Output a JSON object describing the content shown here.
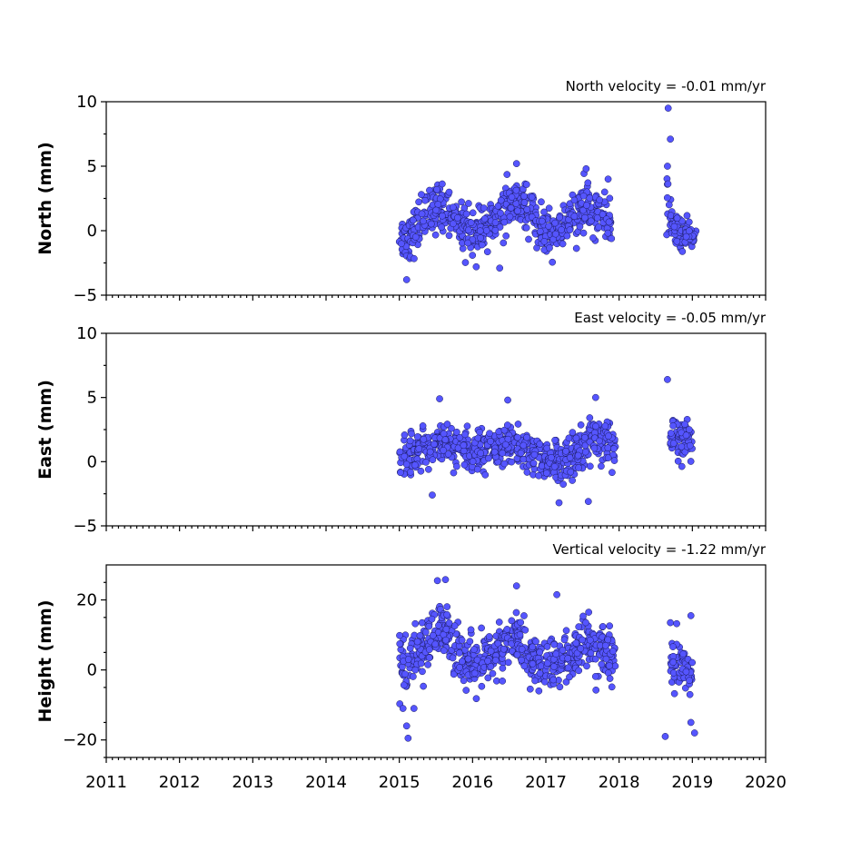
{
  "chart_data": {
    "type": "scatter",
    "x_range": [
      2011,
      2020
    ],
    "x_ticks": [
      "2011",
      "2012",
      "2013",
      "2014",
      "2015",
      "2016",
      "2017",
      "2018",
      "2019",
      "2020"
    ],
    "marker_color": "#5555ff",
    "marker_edge_color": "#1a1a5a",
    "panels": [
      {
        "id": "north",
        "title": "North velocity = -0.01 mm/yr",
        "ylabel": "North (mm)",
        "ylim": [
          -5,
          10
        ],
        "yticks": [
          -5,
          0,
          5,
          10
        ],
        "ytick_labels": [
          "−5",
          "0",
          "5",
          "10"
        ],
        "segments": [
          {
            "x": 2015.0,
            "y": -0.6,
            "sd": 1.0
          },
          {
            "x": 2015.15,
            "y": -0.5,
            "sd": 1.1
          },
          {
            "x": 2015.3,
            "y": 1.0,
            "sd": 1.0
          },
          {
            "x": 2015.5,
            "y": 1.8,
            "sd": 1.1
          },
          {
            "x": 2015.7,
            "y": 1.5,
            "sd": 1.0
          },
          {
            "x": 2015.9,
            "y": 0.2,
            "sd": 0.9
          },
          {
            "x": 2016.1,
            "y": -0.3,
            "sd": 0.9
          },
          {
            "x": 2016.3,
            "y": 0.9,
            "sd": 0.9
          },
          {
            "x": 2016.5,
            "y": 2.0,
            "sd": 1.1
          },
          {
            "x": 2016.7,
            "y": 1.9,
            "sd": 1.0
          },
          {
            "x": 2016.9,
            "y": 0.3,
            "sd": 1.0
          },
          {
            "x": 2017.1,
            "y": -0.3,
            "sd": 1.0
          },
          {
            "x": 2017.3,
            "y": 0.6,
            "sd": 1.0
          },
          {
            "x": 2017.5,
            "y": 1.6,
            "sd": 1.1
          },
          {
            "x": 2017.7,
            "y": 1.5,
            "sd": 1.0
          },
          {
            "x": 2017.9,
            "y": 0.5,
            "sd": 0.9
          },
          {
            "x": 2018.65,
            "y": 2.0,
            "sd": 1.5
          },
          {
            "x": 2018.75,
            "y": 0.3,
            "sd": 0.9
          },
          {
            "x": 2018.9,
            "y": -0.4,
            "sd": 0.6
          },
          {
            "x": 2019.05,
            "y": -0.6,
            "sd": 0.6
          }
        ],
        "outliers": [
          {
            "x": 2018.67,
            "y": 9.5
          },
          {
            "x": 2018.7,
            "y": 7.1
          },
          {
            "x": 2018.66,
            "y": 5.0
          },
          {
            "x": 2015.1,
            "y": -3.8
          },
          {
            "x": 2016.05,
            "y": -2.8
          },
          {
            "x": 2016.37,
            "y": -2.9
          },
          {
            "x": 2016.6,
            "y": 5.2
          },
          {
            "x": 2017.55,
            "y": 4.8
          },
          {
            "x": 2017.85,
            "y": 4.0
          }
        ]
      },
      {
        "id": "east",
        "title": "East velocity = -0.05 mm/yr",
        "ylabel": "East (mm)",
        "ylim": [
          -5,
          10
        ],
        "yticks": [
          -5,
          0,
          5,
          10
        ],
        "ytick_labels": [
          "−5",
          "0",
          "5",
          "10"
        ],
        "segments": [
          {
            "x": 2015.0,
            "y": 0.5,
            "sd": 0.9
          },
          {
            "x": 2015.2,
            "y": 0.6,
            "sd": 0.9
          },
          {
            "x": 2015.4,
            "y": 1.0,
            "sd": 0.9
          },
          {
            "x": 2015.6,
            "y": 1.6,
            "sd": 0.9
          },
          {
            "x": 2015.8,
            "y": 1.2,
            "sd": 0.9
          },
          {
            "x": 2016.0,
            "y": 0.8,
            "sd": 0.9
          },
          {
            "x": 2016.2,
            "y": 1.0,
            "sd": 0.9
          },
          {
            "x": 2016.4,
            "y": 1.0,
            "sd": 0.9
          },
          {
            "x": 2016.6,
            "y": 1.2,
            "sd": 1.0
          },
          {
            "x": 2016.8,
            "y": 0.6,
            "sd": 0.9
          },
          {
            "x": 2017.0,
            "y": 0.0,
            "sd": 0.9
          },
          {
            "x": 2017.2,
            "y": -0.3,
            "sd": 1.0
          },
          {
            "x": 2017.4,
            "y": 0.8,
            "sd": 0.9
          },
          {
            "x": 2017.6,
            "y": 1.6,
            "sd": 1.0
          },
          {
            "x": 2017.8,
            "y": 1.7,
            "sd": 1.0
          },
          {
            "x": 2017.95,
            "y": 0.8,
            "sd": 0.8
          },
          {
            "x": 2018.7,
            "y": 1.8,
            "sd": 1.0
          },
          {
            "x": 2018.85,
            "y": 1.8,
            "sd": 0.9
          },
          {
            "x": 2019.0,
            "y": 1.6,
            "sd": 0.9
          }
        ],
        "outliers": [
          {
            "x": 2018.66,
            "y": 6.4
          },
          {
            "x": 2017.68,
            "y": 5.0
          },
          {
            "x": 2016.48,
            "y": 4.8
          },
          {
            "x": 2015.55,
            "y": 4.9
          },
          {
            "x": 2015.45,
            "y": -2.6
          },
          {
            "x": 2017.18,
            "y": -3.2
          },
          {
            "x": 2017.58,
            "y": -3.1
          }
        ]
      },
      {
        "id": "height",
        "title": "Vertical velocity = -1.22 mm/yr",
        "ylabel": "Height (mm)",
        "ylim": [
          -25,
          30
        ],
        "yticks": [
          -20,
          0,
          20
        ],
        "ytick_labels": [
          "−20",
          "0",
          "20"
        ],
        "segments": [
          {
            "x": 2015.0,
            "y": 3.0,
            "sd": 4.5
          },
          {
            "x": 2015.2,
            "y": 4.0,
            "sd": 4.5
          },
          {
            "x": 2015.4,
            "y": 8.0,
            "sd": 4.5
          },
          {
            "x": 2015.6,
            "y": 12.0,
            "sd": 4.5
          },
          {
            "x": 2015.8,
            "y": 6.0,
            "sd": 4.5
          },
          {
            "x": 2016.0,
            "y": 1.0,
            "sd": 4.5
          },
          {
            "x": 2016.2,
            "y": 2.0,
            "sd": 4.5
          },
          {
            "x": 2016.4,
            "y": 6.0,
            "sd": 4.5
          },
          {
            "x": 2016.6,
            "y": 9.0,
            "sd": 4.5
          },
          {
            "x": 2016.8,
            "y": 3.0,
            "sd": 4.5
          },
          {
            "x": 2017.0,
            "y": 1.0,
            "sd": 4.5
          },
          {
            "x": 2017.2,
            "y": 2.0,
            "sd": 4.5
          },
          {
            "x": 2017.4,
            "y": 5.0,
            "sd": 4.5
          },
          {
            "x": 2017.6,
            "y": 7.0,
            "sd": 4.5
          },
          {
            "x": 2017.8,
            "y": 4.0,
            "sd": 4.5
          },
          {
            "x": 2017.95,
            "y": 2.0,
            "sd": 4.0
          },
          {
            "x": 2018.7,
            "y": 1.5,
            "sd": 4.5
          },
          {
            "x": 2018.85,
            "y": 1.0,
            "sd": 4.5
          },
          {
            "x": 2019.0,
            "y": -1.0,
            "sd": 4.5
          }
        ],
        "outliers": [
          {
            "x": 2015.52,
            "y": 25.5
          },
          {
            "x": 2015.63,
            "y": 25.8
          },
          {
            "x": 2016.6,
            "y": 24.0
          },
          {
            "x": 2017.15,
            "y": 21.5
          },
          {
            "x": 2015.12,
            "y": -19.5
          },
          {
            "x": 2015.1,
            "y": -16.0
          },
          {
            "x": 2015.05,
            "y": -11.0
          },
          {
            "x": 2015.2,
            "y": -11.0
          },
          {
            "x": 2018.63,
            "y": -19.0
          },
          {
            "x": 2019.03,
            "y": -18.0
          },
          {
            "x": 2018.98,
            "y": -15.0
          },
          {
            "x": 2018.98,
            "y": 15.5
          },
          {
            "x": 2018.7,
            "y": 13.5
          }
        ]
      }
    ]
  }
}
